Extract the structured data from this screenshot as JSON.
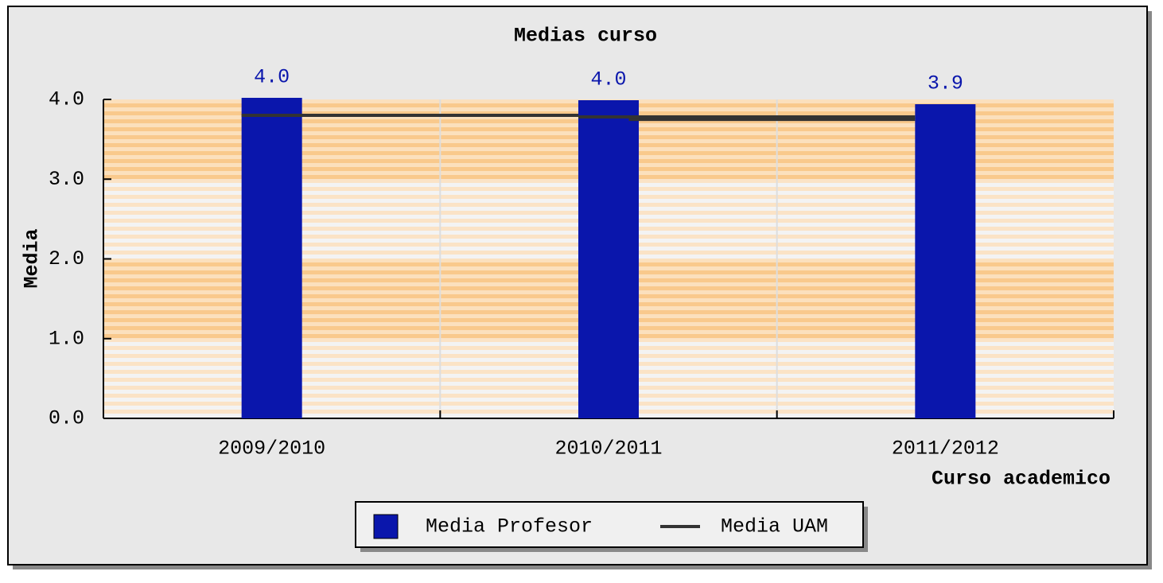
{
  "chart_data": {
    "type": "bar",
    "title": "Medias curso",
    "x_label": "Curso academico",
    "y_label": "Media",
    "categories": [
      "2009/2010",
      "2010/2011",
      "2011/2012"
    ],
    "series": [
      {
        "name": "Media Profesor",
        "color": "#0a16ac",
        "type": "bar",
        "values": [
          4.02,
          3.99,
          3.94
        ],
        "value_labels": [
          "4.0",
          "4.0",
          "3.9"
        ]
      },
      {
        "name": "Media UAM",
        "color": "#333333",
        "type": "step",
        "values": [
          3.8,
          3.78,
          3.75
        ]
      }
    ],
    "ylim": [
      0,
      4
    ],
    "yticks": [
      {
        "value": 0,
        "label": "0.0"
      },
      {
        "value": 1,
        "label": "1.0"
      },
      {
        "value": 2,
        "label": "2.0"
      },
      {
        "value": 3,
        "label": "3.0"
      },
      {
        "value": 4,
        "label": "4.0"
      }
    ],
    "grid": true
  }
}
